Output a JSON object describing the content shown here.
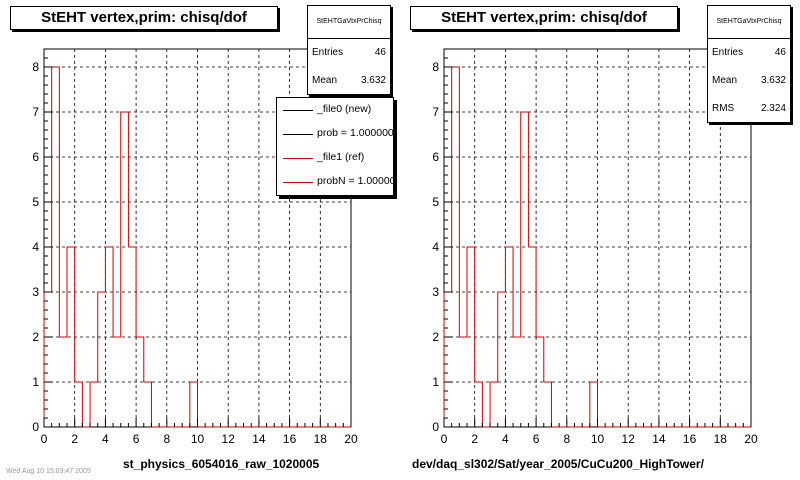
{
  "chart_data": [
    {
      "type": "bar",
      "histogram": true,
      "title": "StEHT  vertex,prim: chisq/dof",
      "xlabel": "st_physics_6054016_raw_1020005",
      "ylabel": "",
      "xlim": [
        0,
        20
      ],
      "ylim": [
        0,
        8.4
      ],
      "xticks": [
        "0",
        "2",
        "4",
        "6",
        "8",
        "10",
        "12",
        "14",
        "16",
        "18",
        "20"
      ],
      "yticks": [
        "0",
        "1",
        "2",
        "3",
        "4",
        "5",
        "6",
        "7",
        "8"
      ],
      "grid": true,
      "bin_width": 0.5,
      "bin_start": 0,
      "series": [
        {
          "name": "_file1 (ref)",
          "color": "#d40000",
          "values": [
            3,
            8,
            2,
            4,
            1,
            0,
            1,
            3,
            4,
            2,
            7,
            4,
            2,
            1,
            0,
            0,
            0,
            0,
            0,
            1,
            0,
            0,
            0,
            0,
            0,
            0,
            0,
            0,
            0,
            0,
            0,
            0,
            0,
            0,
            0,
            0,
            0,
            0,
            0,
            0
          ]
        }
      ],
      "stats": {
        "header": "StEHTGaVtxPrChisq",
        "entries_label": "Entries",
        "entries": "46",
        "mean_label": "Mean",
        "mean": "3.632"
      },
      "legend": {
        "placement": "top-right",
        "entries": [
          {
            "label": "_file0 (new)",
            "color": "#000000"
          },
          {
            "label": "prob = 1.000000",
            "color": "#000000"
          },
          {
            "label": "_file1 (ref)",
            "color": "#d40000"
          },
          {
            "label": "probN = 1.000000",
            "color": "#d40000"
          }
        ]
      }
    },
    {
      "type": "bar",
      "histogram": true,
      "title": "StEHT  vertex,prim: chisq/dof",
      "xlabel": "dev/daq_sl302/Sat/year_2005/CuCu200_HighTower/",
      "ylabel": "",
      "xlim": [
        0,
        20
      ],
      "ylim": [
        0,
        8.4
      ],
      "xticks": [
        "0",
        "2",
        "4",
        "6",
        "8",
        "10",
        "12",
        "14",
        "16",
        "18",
        "20"
      ],
      "yticks": [
        "0",
        "1",
        "2",
        "3",
        "4",
        "5",
        "6",
        "7",
        "8"
      ],
      "grid": true,
      "bin_width": 0.5,
      "bin_start": 0,
      "series": [
        {
          "name": "",
          "color": "#d40000",
          "values": [
            3,
            8,
            2,
            4,
            1,
            0,
            1,
            3,
            4,
            2,
            7,
            4,
            2,
            1,
            0,
            0,
            0,
            0,
            0,
            1,
            0,
            0,
            0,
            0,
            0,
            0,
            0,
            0,
            0,
            0,
            0,
            0,
            0,
            0,
            0,
            0,
            0,
            0,
            0,
            0
          ]
        }
      ],
      "stats": {
        "header": "StEHTGaVtxPrChisq",
        "entries_label": "Entries",
        "entries": "46",
        "mean_label": "Mean",
        "mean": "3.632",
        "rms_label": "RMS",
        "rms": "2.324"
      }
    }
  ],
  "footer_left": "Wed Aug 10 15:03:47 2005"
}
